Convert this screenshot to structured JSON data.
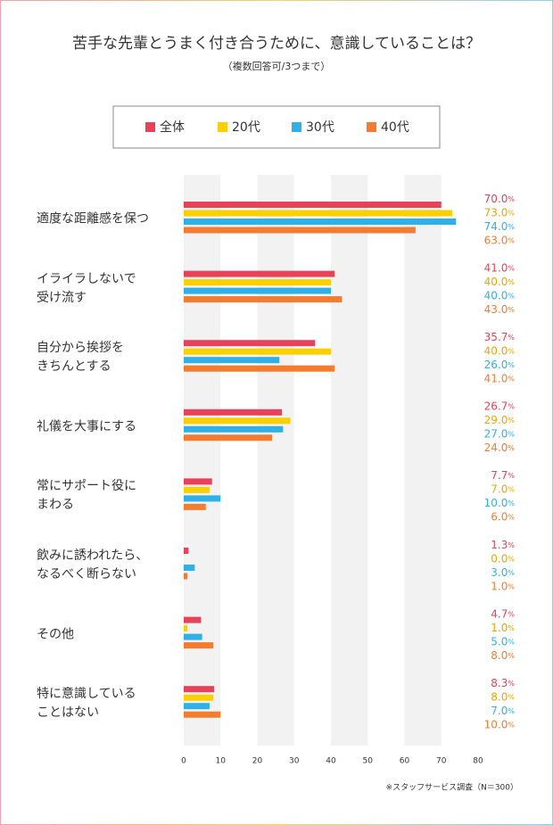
{
  "chart_data": {
    "type": "barh",
    "title": "苦手な先輩とうまく付き合うために、意識していることは？",
    "subtitle": "（複数回答可/3つまで）",
    "categories": [
      "適度な距離感を保つ",
      "イライラしないで\n受け流す",
      "自分から挨拶を\nきちんとする",
      "礼儀を大事にする",
      "常にサポート役に\nまわる",
      "飲みに誘われたら、\nなるべく断らない",
      "その他",
      "特に意識している\nことはない"
    ],
    "series": [
      {
        "name": "全体",
        "color": "#e8425a",
        "values": [
          70.0,
          41.0,
          35.7,
          26.7,
          7.7,
          1.3,
          4.7,
          8.3
        ],
        "value_labels": [
          "70.0%",
          "41.0%",
          "35.7%",
          "26.7%",
          "7.7%",
          "1.3%",
          "4.7%",
          "8.3%"
        ]
      },
      {
        "name": "20代",
        "color": "#fbcf00",
        "values": [
          73.0,
          40.0,
          40.0,
          29.0,
          7.0,
          0.0,
          1.0,
          8.0
        ],
        "value_labels": [
          "73.0%",
          "40.0%",
          "40.0%",
          "29.0%",
          "7.0%",
          "0.0%",
          "1.0%",
          "8.0%"
        ]
      },
      {
        "name": "30代",
        "color": "#2fb0e8",
        "values": [
          74.0,
          40.0,
          26.0,
          27.0,
          10.0,
          3.0,
          5.0,
          7.0
        ],
        "value_labels": [
          "74.0%",
          "40.0%",
          "26.0%",
          "27.0%",
          "10.0%",
          "3.0%",
          "5.0%",
          "7.0%"
        ]
      },
      {
        "name": "40代",
        "color": "#f47c30",
        "values": [
          63.0,
          43.0,
          41.0,
          24.0,
          6.0,
          1.0,
          8.0,
          10.0
        ],
        "value_labels": [
          "63.0%",
          "43.0%",
          "41.0%",
          "24.0%",
          "6.0%",
          "1.0%",
          "8.0%",
          "10.0%"
        ]
      }
    ],
    "xlim": [
      0,
      80
    ],
    "xticks": [
      0,
      10,
      20,
      30,
      40,
      50,
      60,
      70,
      80
    ],
    "grid": true,
    "note": "※スタッフサービス調査（N＝300）"
  }
}
